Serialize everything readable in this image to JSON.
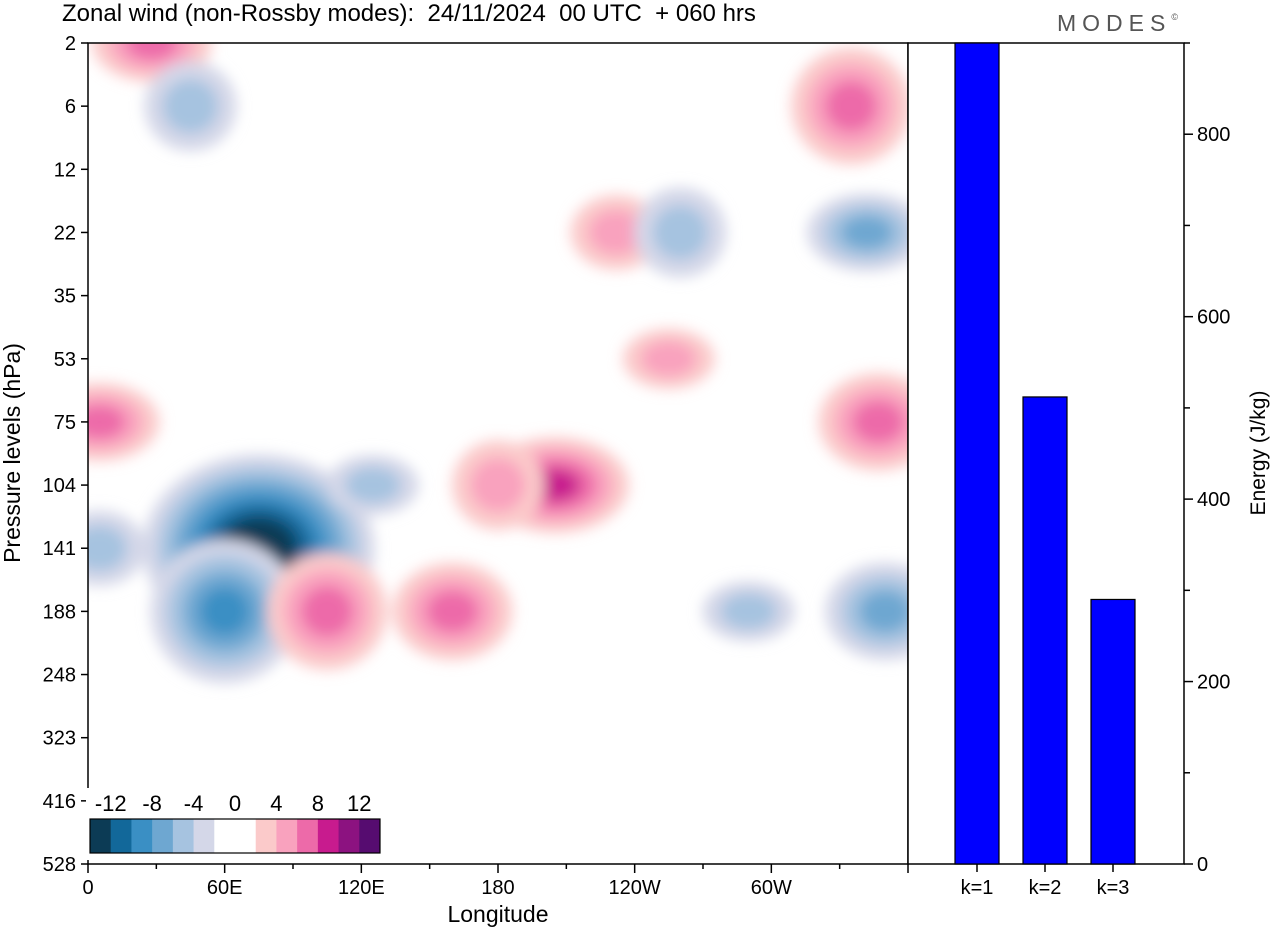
{
  "header": {
    "title": "Zonal wind (non-Rossby modes):  24/11/2024  00 UTC  + 060 hrs",
    "logo": "MODES",
    "logo_mark": "©"
  },
  "chart_data": [
    {
      "type": "heatmap",
      "xlabel": "Longitude",
      "ylabel": "Pressure levels (hPa)",
      "x_ticks": [
        "0",
        "60E",
        "120E",
        "180",
        "120W",
        "60W"
      ],
      "y_ticks": [
        "2",
        "6",
        "12",
        "22",
        "35",
        "53",
        "75",
        "104",
        "141",
        "188",
        "248",
        "323",
        "416",
        "528"
      ],
      "colorbar": {
        "labels": [
          "-12",
          "-8",
          "-4",
          "0",
          "4",
          "8",
          "12"
        ],
        "colors": [
          "#0c3b55",
          "#12689a",
          "#3a8fc4",
          "#6ea7d1",
          "#a6c3e0",
          "#d4d7e8",
          "#ffffff",
          "#ffffff",
          "#fbcaca",
          "#f9a2be",
          "#ed6aa9",
          "#c81b8e",
          "#8c1280",
          "#560c70"
        ]
      },
      "features": [
        {
          "lon": 28,
          "lev": 2,
          "value": 6
        },
        {
          "lon": 75,
          "lev": 141,
          "value": -14
        },
        {
          "lon": 60,
          "lev": 188,
          "value": -8
        },
        {
          "lon": 5,
          "lev": 75,
          "value": 6
        },
        {
          "lon": 160,
          "lev": 188,
          "value": 6
        },
        {
          "lon": 105,
          "lev": 188,
          "value": 5
        },
        {
          "lon": 205,
          "lev": 104,
          "value": 8
        },
        {
          "lon": 347,
          "lev": 75,
          "value": 6
        },
        {
          "lon": 335,
          "lev": 6,
          "value": 5
        },
        {
          "lon": 342,
          "lev": 22,
          "value": -6
        },
        {
          "lon": 350,
          "lev": 188,
          "value": -6
        },
        {
          "lon": 180,
          "lev": 104,
          "value": 4
        },
        {
          "lon": 255,
          "lev": 53,
          "value": 3
        },
        {
          "lon": 232,
          "lev": 22,
          "value": 3
        },
        {
          "lon": 45,
          "lev": 6,
          "value": -4
        },
        {
          "lon": 125,
          "lev": 104,
          "value": -4
        },
        {
          "lon": 5,
          "lev": 141,
          "value": -4
        },
        {
          "lon": 260,
          "lev": 22,
          "value": -3
        },
        {
          "lon": 290,
          "lev": 188,
          "value": -3
        }
      ]
    },
    {
      "type": "bar",
      "categories": [
        "k=1",
        "k=2",
        "k=3"
      ],
      "values": [
        900,
        512,
        290
      ],
      "ylabel": "Energy (J/kg)",
      "ylim": [
        0,
        900
      ],
      "y_ticks": [
        0,
        200,
        400,
        600,
        800
      ],
      "bar_color": "#0000ff"
    }
  ]
}
